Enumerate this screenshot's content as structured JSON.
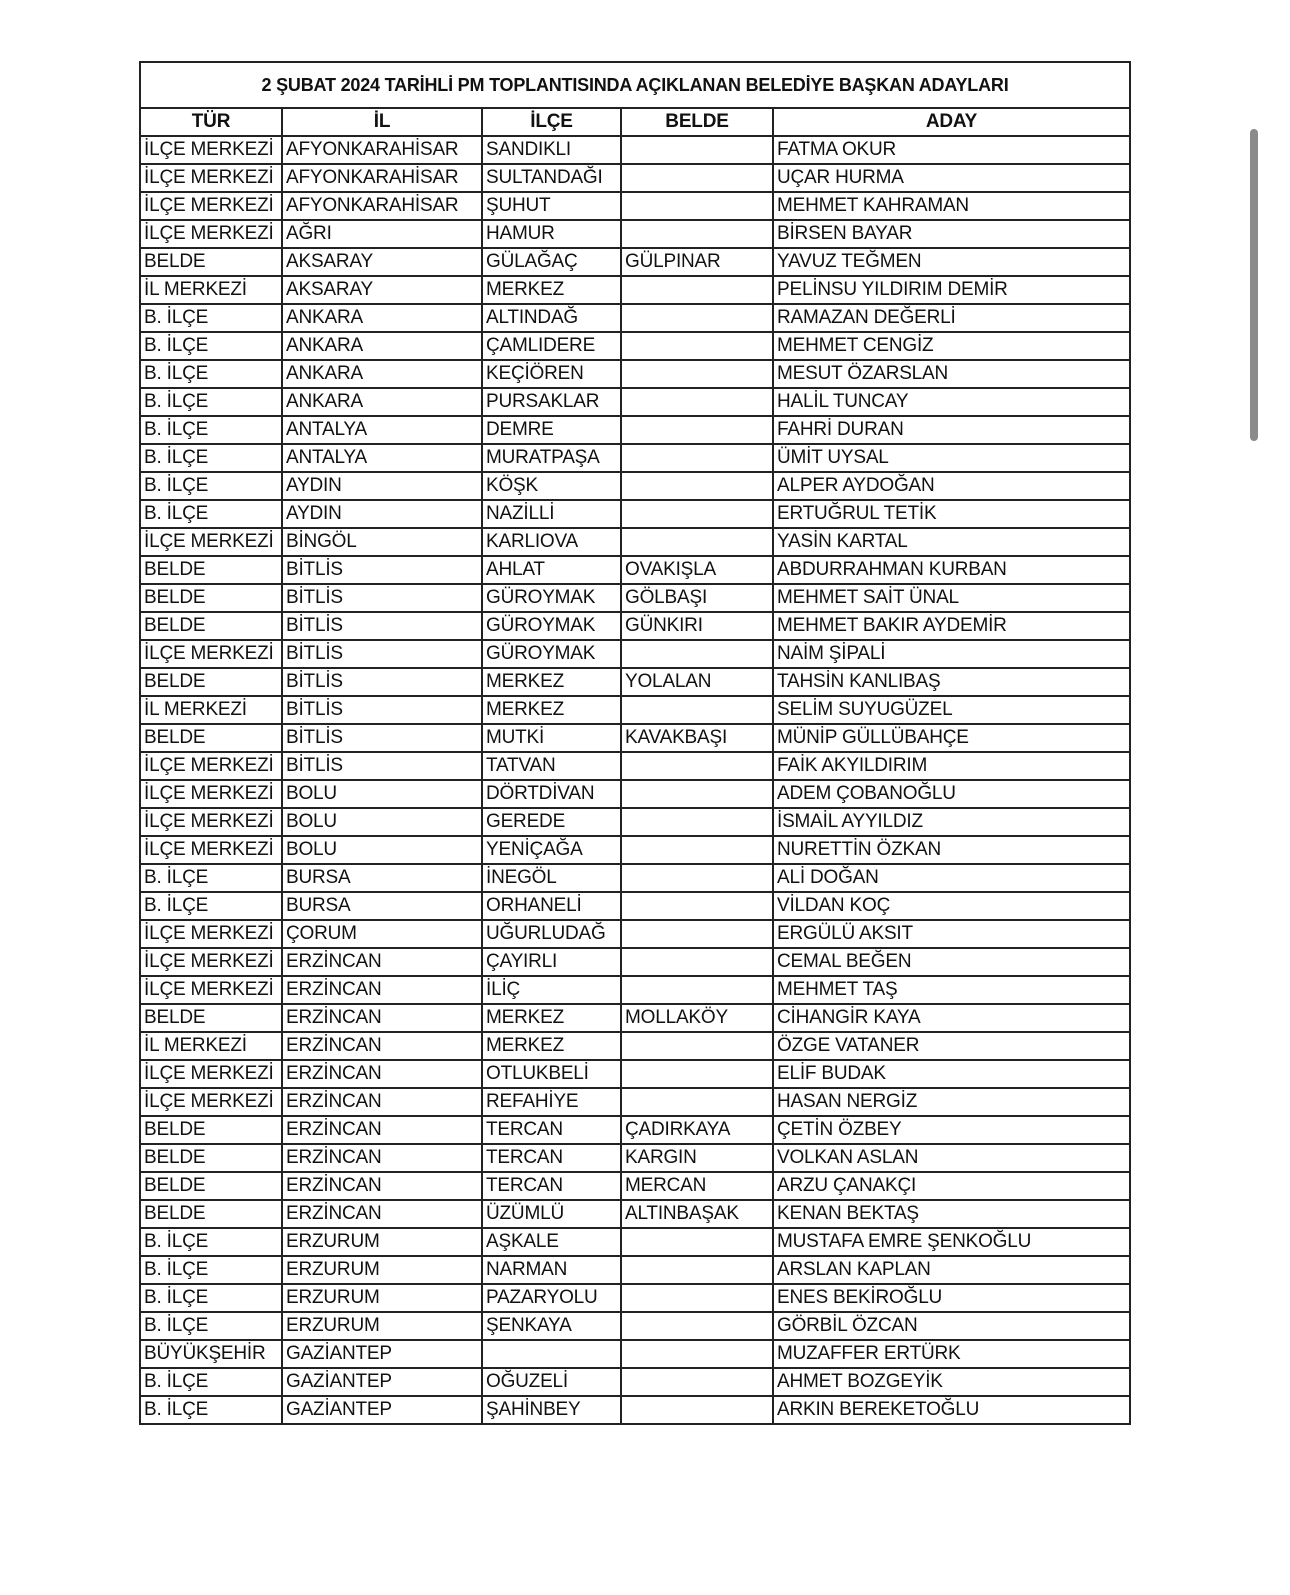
{
  "title": "2 ŞUBAT 2024 TARİHLİ PM TOPLANTISINDA AÇIKLANAN BELEDİYE BAŞKAN ADAYLARI",
  "columns": [
    "TÜR",
    "İL",
    "İLÇE",
    "BELDE",
    "ADAY"
  ],
  "rows": [
    [
      "İLÇE MERKEZİ",
      "AFYONKARAHİSAR",
      "SANDIKLI",
      "",
      "FATMA OKUR"
    ],
    [
      "İLÇE MERKEZİ",
      "AFYONKARAHİSAR",
      "SULTANDAĞI",
      "",
      "UÇAR HURMA"
    ],
    [
      "İLÇE MERKEZİ",
      "AFYONKARAHİSAR",
      "ŞUHUT",
      "",
      "MEHMET KAHRAMAN"
    ],
    [
      "İLÇE MERKEZİ",
      "AĞRI",
      "HAMUR",
      "",
      "BİRSEN BAYAR"
    ],
    [
      "BELDE",
      "AKSARAY",
      "GÜLAĞAÇ",
      "GÜLPINAR",
      "YAVUZ TEĞMEN"
    ],
    [
      "İL MERKEZİ",
      "AKSARAY",
      "MERKEZ",
      "",
      "PELİNSU YILDIRIM DEMİR"
    ],
    [
      "B. İLÇE",
      "ANKARA",
      "ALTINDAĞ",
      "",
      "RAMAZAN DEĞERLİ"
    ],
    [
      "B. İLÇE",
      "ANKARA",
      "ÇAMLIDERE",
      "",
      "MEHMET CENGİZ"
    ],
    [
      "B. İLÇE",
      "ANKARA",
      "KEÇİÖREN",
      "",
      "MESUT ÖZARSLAN"
    ],
    [
      "B. İLÇE",
      "ANKARA",
      "PURSAKLAR",
      "",
      "HALİL TUNCAY"
    ],
    [
      "B. İLÇE",
      "ANTALYA",
      "DEMRE",
      "",
      "FAHRİ DURAN"
    ],
    [
      "B. İLÇE",
      "ANTALYA",
      "MURATPAŞA",
      "",
      "ÜMİT UYSAL"
    ],
    [
      "B. İLÇE",
      "AYDIN",
      "KÖŞK",
      "",
      "ALPER AYDOĞAN"
    ],
    [
      "B. İLÇE",
      "AYDIN",
      "NAZİLLİ",
      "",
      "ERTUĞRUL TETİK"
    ],
    [
      "İLÇE MERKEZİ",
      "BİNGÖL",
      "KARLIOVA",
      "",
      "YASİN KARTAL"
    ],
    [
      "BELDE",
      "BİTLİS",
      "AHLAT",
      "OVAKIŞLA",
      "ABDURRAHMAN KURBAN"
    ],
    [
      "BELDE",
      "BİTLİS",
      "GÜROYMAK",
      "GÖLBAŞI",
      "MEHMET SAİT ÜNAL"
    ],
    [
      "BELDE",
      "BİTLİS",
      "GÜROYMAK",
      "GÜNKIRI",
      "MEHMET BAKIR AYDEMİR"
    ],
    [
      "İLÇE MERKEZİ",
      "BİTLİS",
      "GÜROYMAK",
      "",
      "NAİM ŞİPALİ"
    ],
    [
      "BELDE",
      "BİTLİS",
      "MERKEZ",
      "YOLALAN",
      "TAHSİN KANLIBAŞ"
    ],
    [
      "İL MERKEZİ",
      "BİTLİS",
      "MERKEZ",
      "",
      "SELİM SUYUGÜZEL"
    ],
    [
      "BELDE",
      "BİTLİS",
      "MUTKİ",
      "KAVAKBAŞI",
      "MÜNİP GÜLLÜBAHÇE"
    ],
    [
      "İLÇE MERKEZİ",
      "BİTLİS",
      "TATVAN",
      "",
      "FAİK AKYILDIRIM"
    ],
    [
      "İLÇE MERKEZİ",
      "BOLU",
      "DÖRTDİVAN",
      "",
      "ADEM ÇOBANOĞLU"
    ],
    [
      "İLÇE MERKEZİ",
      "BOLU",
      "GEREDE",
      "",
      "İSMAİL AYYILDIZ"
    ],
    [
      "İLÇE MERKEZİ",
      "BOLU",
      "YENİÇAĞA",
      "",
      "NURETTİN ÖZKAN"
    ],
    [
      "B. İLÇE",
      "BURSA",
      "İNEGÖL",
      "",
      "ALİ DOĞAN"
    ],
    [
      "B. İLÇE",
      "BURSA",
      "ORHANELİ",
      "",
      "VİLDAN KOÇ"
    ],
    [
      "İLÇE MERKEZİ",
      "ÇORUM",
      "UĞURLUDAĞ",
      "",
      "ERGÜLÜ AKSIT"
    ],
    [
      "İLÇE MERKEZİ",
      "ERZİNCAN",
      "ÇAYIRLI",
      "",
      "CEMAL BEĞEN"
    ],
    [
      "İLÇE MERKEZİ",
      "ERZİNCAN",
      "İLİÇ",
      "",
      "MEHMET TAŞ"
    ],
    [
      "BELDE",
      "ERZİNCAN",
      "MERKEZ",
      "MOLLAKÖY",
      "CİHANGİR KAYA"
    ],
    [
      "İL MERKEZİ",
      "ERZİNCAN",
      "MERKEZ",
      "",
      "ÖZGE VATANER"
    ],
    [
      "İLÇE MERKEZİ",
      "ERZİNCAN",
      "OTLUKBELİ",
      "",
      "ELİF BUDAK"
    ],
    [
      "İLÇE MERKEZİ",
      "ERZİNCAN",
      "REFAHİYE",
      "",
      "HASAN NERGİZ"
    ],
    [
      "BELDE",
      "ERZİNCAN",
      "TERCAN",
      "ÇADIRKAYA",
      "ÇETİN ÖZBEY"
    ],
    [
      "BELDE",
      "ERZİNCAN",
      "TERCAN",
      "KARGIN",
      "VOLKAN ASLAN"
    ],
    [
      "BELDE",
      "ERZİNCAN",
      "TERCAN",
      "MERCAN",
      "ARZU ÇANAKÇI"
    ],
    [
      "BELDE",
      "ERZİNCAN",
      "ÜZÜMLÜ",
      "ALTINBAŞAK",
      "KENAN BEKTAŞ"
    ],
    [
      "B. İLÇE",
      "ERZURUM",
      "AŞKALE",
      "",
      "MUSTAFA EMRE ŞENKOĞLU"
    ],
    [
      "B. İLÇE",
      "ERZURUM",
      "NARMAN",
      "",
      "ARSLAN KAPLAN"
    ],
    [
      "B. İLÇE",
      "ERZURUM",
      "PAZARYOLU",
      "",
      "ENES BEKİROĞLU"
    ],
    [
      "B. İLÇE",
      "ERZURUM",
      "ŞENKAYA",
      "",
      "GÖRBİL ÖZCAN"
    ],
    [
      "BÜYÜKŞEHİR",
      "GAZİANTEP",
      "",
      "",
      "MUZAFFER ERTÜRK"
    ],
    [
      "B. İLÇE",
      "GAZİANTEP",
      "OĞUZELİ",
      "",
      "AHMET BOZGEYİK"
    ],
    [
      "B. İLÇE",
      "GAZİANTEP",
      "ŞAHİNBEY",
      "",
      "ARKIN BEREKETOĞLU"
    ]
  ]
}
